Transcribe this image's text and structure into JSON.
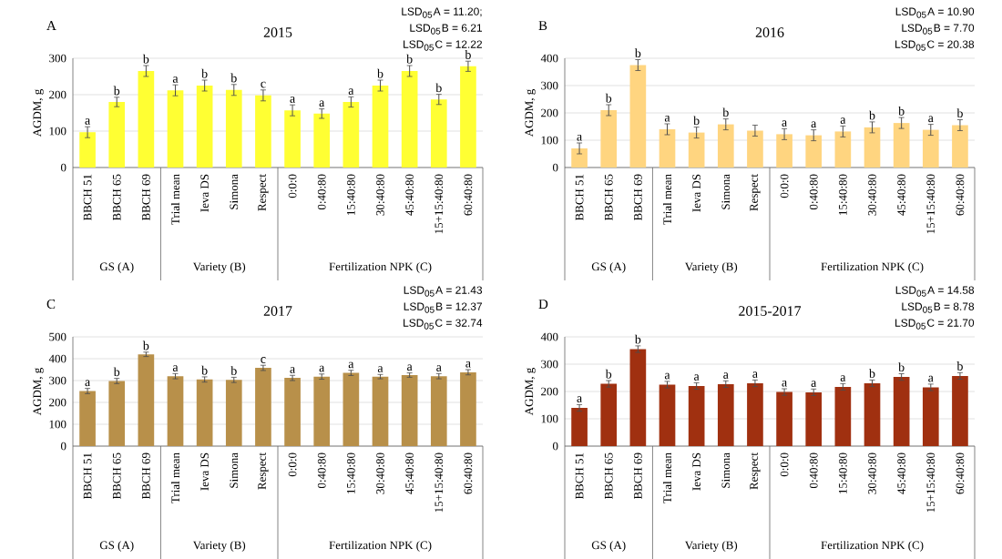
{
  "chart_data": [
    {
      "type": "bar",
      "title": "2015",
      "ylabel": "AGDM, g",
      "color": "#ffff33",
      "grid": "y",
      "categories": [
        "BBCH 51",
        "BBCH 65",
        "BBCH 69",
        "Trial mean",
        "Ieva DS",
        "Simona",
        "Respect",
        "0:0:0",
        "0:40:80",
        "15:40:80",
        "30:40:80",
        "45:40:80",
        "15+15:40:80",
        "60:40:80"
      ],
      "values": [
        97,
        180,
        265,
        212,
        225,
        213,
        198,
        157,
        148,
        180,
        225,
        265,
        187,
        278
      ],
      "errors": [
        15,
        13,
        15,
        15,
        15,
        15,
        15,
        15,
        13,
        14,
        15,
        15,
        14,
        14
      ],
      "value_labels": [
        "a",
        "b",
        "b",
        "a",
        "b",
        "b",
        "c",
        "a",
        "a",
        "a",
        "b",
        "b",
        "b",
        "b"
      ],
      "ylim": [
        0,
        300
      ],
      "yticks": [
        0,
        100,
        200,
        300
      ],
      "annotations": [
        "A",
        "LSD$_{05}$A = 11.20;",
        "LSD$_{05}$B = 6.21",
        "LSD$_{05}$C = 12.22",
        "GS (A)",
        "Variety (B)",
        "Fertilization NPK (C)"
      ]
    },
    {
      "type": "bar",
      "title": "2016",
      "ylabel": "AGDM, g",
      "color": "#ffd580",
      "grid": "y",
      "categories": [
        "BBCH 51",
        "BBCH 65",
        "BBCH 69",
        "Trial mean",
        "Ieva DS",
        "Simona",
        "Respect",
        "0:0:0",
        "0:40:80",
        "15:40:80",
        "30:40:80",
        "45:40:80",
        "15+15:40:80",
        "60:40:80"
      ],
      "values": [
        70,
        210,
        375,
        140,
        128,
        158,
        135,
        122,
        118,
        132,
        147,
        163,
        138,
        155
      ],
      "errors": [
        20,
        20,
        20,
        20,
        20,
        20,
        20,
        20,
        20,
        20,
        20,
        20,
        20,
        20
      ],
      "value_labels": [
        "a",
        "b",
        "b",
        "a",
        "b",
        "b",
        null,
        "a",
        "a",
        "a",
        "b",
        "b",
        "a",
        "b"
      ],
      "ylim": [
        0,
        400
      ],
      "yticks": [
        0,
        100,
        200,
        300,
        400
      ],
      "annotations": [
        "B",
        "LSD$_{05}$A = 10.90",
        "LSD$_{05}$B = 7.70",
        "LSD$_{05}$C = 20.38",
        "GS (A)",
        "Variety (B)",
        "Fertilization NPK (C)"
      ]
    },
    {
      "type": "bar",
      "title": "2017",
      "ylabel": "AGDM, g",
      "color": "#b8904a",
      "grid": "y",
      "categories": [
        "BBCH 51",
        "BBCH 65",
        "BBCH 69",
        "Trial mean",
        "Ieva DS",
        "Simona",
        "Respect",
        "0:0:0",
        "0:40:80",
        "15:40:80",
        "30:40:80",
        "45:40:80",
        "15+15:40:80",
        "60:40:80"
      ],
      "values": [
        252,
        298,
        420,
        320,
        305,
        303,
        358,
        312,
        318,
        335,
        318,
        325,
        320,
        338
      ],
      "errors": [
        12,
        12,
        10,
        12,
        12,
        12,
        12,
        12,
        12,
        12,
        10,
        10,
        12,
        12
      ],
      "value_labels": [
        "a",
        "b",
        "b",
        "a",
        "b",
        "b",
        "c",
        "a",
        "a",
        "a",
        "a",
        "a",
        "a",
        "a"
      ],
      "ylim": [
        0,
        500
      ],
      "yticks": [
        0,
        100,
        200,
        300,
        400,
        500
      ],
      "annotations": [
        "C",
        "LSD$_{05}$A = 21.43",
        "LSD$_{05}$B = 12.37",
        "LSD$_{05}$C = 32.74",
        "GS (A)",
        "Variety (B)",
        "Fertilization NPK (C)"
      ]
    },
    {
      "type": "bar",
      "title": "2015-2017",
      "ylabel": "AGDM, g",
      "color": "#a03010",
      "grid": "y",
      "categories": [
        "BBCH 51",
        "BBCH 65",
        "BBCH 69",
        "Trial mean",
        "Ieva DS",
        "Simona",
        "Respect",
        "0:0:0",
        "0:40:80",
        "15:40:80",
        "30:40:80",
        "45:40:80",
        "15+15:40:80",
        "60:40:80"
      ],
      "values": [
        140,
        228,
        355,
        225,
        220,
        227,
        230,
        198,
        197,
        217,
        230,
        253,
        215,
        257
      ],
      "errors": [
        12,
        12,
        12,
        12,
        12,
        12,
        12,
        12,
        12,
        12,
        12,
        12,
        12,
        12
      ],
      "value_labels": [
        "a",
        "b",
        "b",
        "a",
        "a",
        "a",
        "a",
        "a",
        "a",
        "a",
        "b",
        "b",
        "a",
        "b"
      ],
      "ylim": [
        0,
        400
      ],
      "yticks": [
        0,
        100,
        200,
        300,
        400
      ],
      "annotations": [
        "D",
        "LSD$_{05}$A = 14.58",
        "LSD$_{05}$B = 8.78",
        "LSD$_{05}$C = 21.70",
        "GS (A)",
        "Variety (B)",
        "Fertilization NPK (C)"
      ]
    }
  ]
}
